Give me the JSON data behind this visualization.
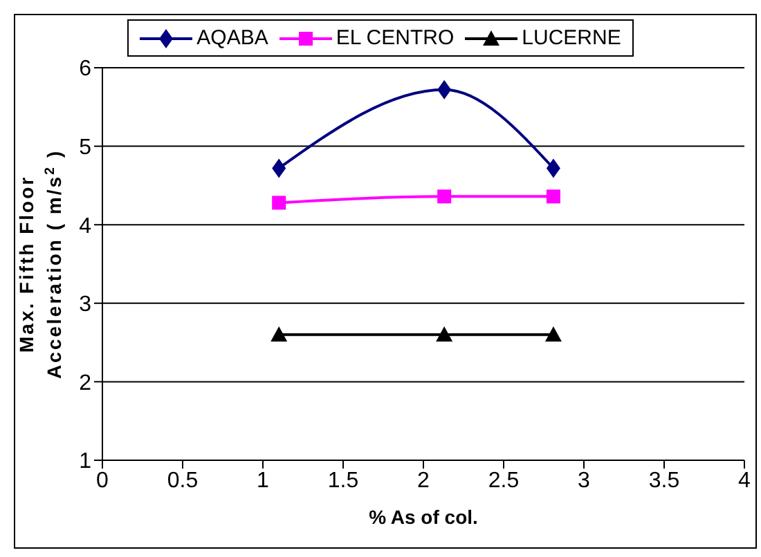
{
  "chart_data": {
    "type": "line",
    "xlabel": "% As of col.",
    "ylabel": "Max. Fifth Floor Acceleration ( m/s$^{2}$ )",
    "x": [
      1.1,
      2.13,
      2.81
    ],
    "series": [
      {
        "name": "AQABA",
        "color": "#000080",
        "values": [
          4.72,
          5.72,
          4.72
        ],
        "marker": "diamond"
      },
      {
        "name": "EL CENTRO",
        "color": "#ff00ff",
        "values": [
          4.28,
          4.36,
          4.36
        ],
        "marker": "square"
      },
      {
        "name": "LUCERNE",
        "color": "#000000",
        "values": [
          2.6,
          2.6,
          2.6
        ],
        "marker": "triangle"
      }
    ],
    "xlim": [
      0,
      4
    ],
    "xticks": [
      0,
      0.5,
      1,
      1.5,
      2,
      2.5,
      3,
      3.5,
      4
    ],
    "ylim": [
      1,
      6
    ],
    "yticks": [
      1,
      2,
      3,
      4,
      5,
      6
    ],
    "grid": "y",
    "legend": "top",
    "line_style": "solid"
  }
}
